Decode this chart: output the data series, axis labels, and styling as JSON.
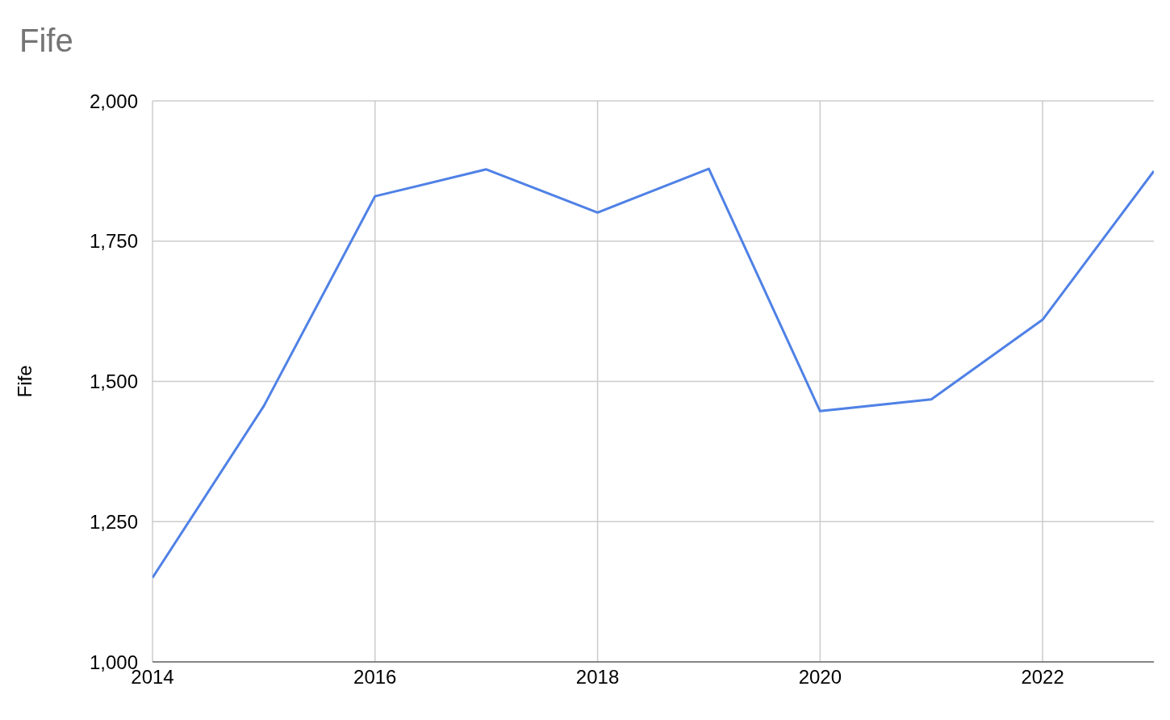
{
  "chart_data": {
    "type": "line",
    "title": "Fife",
    "ylabel": "Fife",
    "x": [
      2014,
      2015,
      2016,
      2017,
      2018,
      2019,
      2020,
      2021,
      2022,
      2023
    ],
    "series": [
      {
        "color": "#4f81e6",
        "values": [
          1150,
          1456,
          1830,
          1878,
          1801,
          1879,
          1447,
          1468,
          1610,
          1875
        ]
      }
    ],
    "xlim": [
      2014,
      2023
    ],
    "xticks": [
      2014,
      2016,
      2018,
      2020,
      2022
    ],
    "ylim": [
      1000,
      2000
    ],
    "yticks": [
      {
        "value": 1000,
        "label": "1,000"
      },
      {
        "value": 1250,
        "label": "1,250"
      },
      {
        "value": 1500,
        "label": "1,500"
      },
      {
        "value": 1750,
        "label": "1,750"
      },
      {
        "value": 2000,
        "label": "2,000"
      }
    ],
    "grid": true,
    "marker": "none",
    "line_style": "solid"
  }
}
